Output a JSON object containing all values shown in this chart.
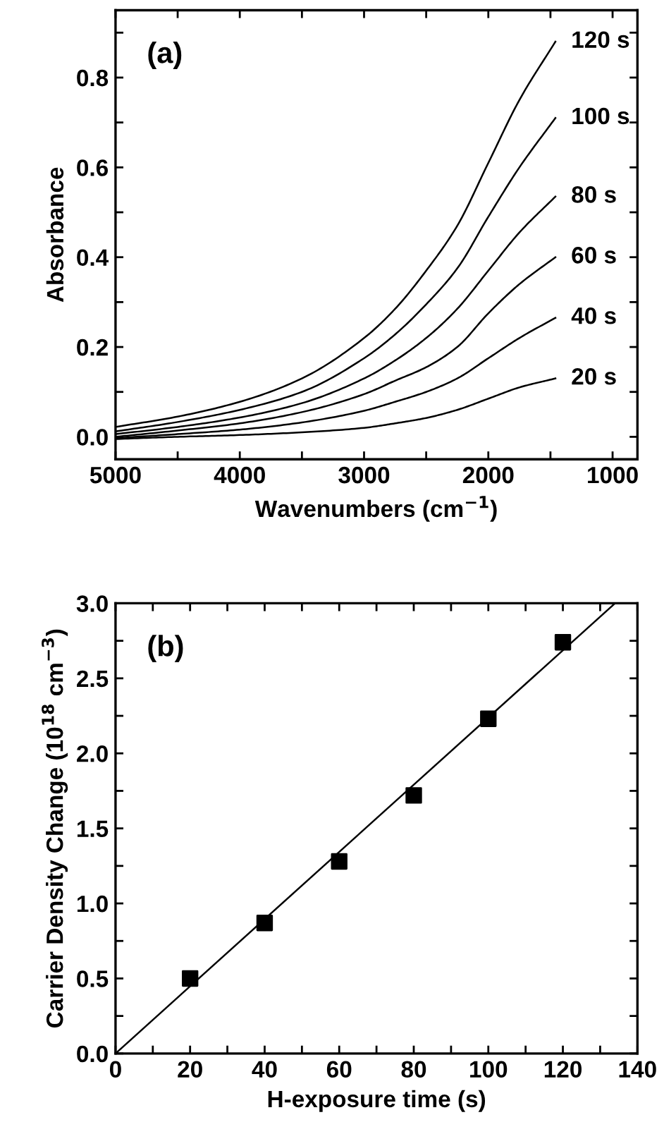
{
  "chart_data": [
    {
      "type": "line",
      "xlabel": "Wavenumbers (cm$^{−1}$)",
      "ylabel": "Absorbance",
      "annotations": [
        "(a)"
      ],
      "x": [
        5000,
        4500,
        4000,
        3500,
        3000,
        2750,
        2500,
        2250,
        2000,
        1750,
        1460
      ],
      "series": [
        {
          "name": "120 s",
          "color": "#000000",
          "values": [
            0.022,
            0.045,
            0.078,
            0.13,
            0.22,
            0.285,
            0.37,
            0.47,
            0.61,
            0.75,
            0.88
          ]
        },
        {
          "name": "100 s",
          "color": "#000000",
          "values": [
            0.012,
            0.033,
            0.06,
            0.1,
            0.175,
            0.228,
            0.295,
            0.375,
            0.49,
            0.6,
            0.71
          ]
        },
        {
          "name": "80 s",
          "color": "#000000",
          "values": [
            0.006,
            0.022,
            0.043,
            0.075,
            0.13,
            0.17,
            0.22,
            0.285,
            0.37,
            0.455,
            0.535
          ]
        },
        {
          "name": "60 s",
          "color": "#000000",
          "values": [
            0.0,
            0.014,
            0.03,
            0.055,
            0.095,
            0.125,
            0.155,
            0.2,
            0.275,
            0.34,
            0.4
          ]
        },
        {
          "name": "40 s",
          "color": "#000000",
          "values": [
            -0.003,
            0.006,
            0.016,
            0.032,
            0.058,
            0.078,
            0.1,
            0.13,
            0.175,
            0.22,
            0.265
          ]
        },
        {
          "name": "20 s",
          "color": "#000000",
          "values": [
            -0.005,
            0.0,
            0.004,
            0.01,
            0.02,
            0.03,
            0.042,
            0.06,
            0.085,
            0.11,
            0.13
          ]
        }
      ],
      "xlim": [
        5000,
        800
      ],
      "ylim": [
        -0.05,
        0.95
      ],
      "xticks": [
        5000,
        {
          "value": 4500,
          "label": null
        },
        4000,
        {
          "value": 3500,
          "label": null
        },
        3000,
        {
          "value": 2500,
          "label": null
        },
        2000,
        {
          "value": 1500,
          "label": null
        },
        1000
      ],
      "yticks": [
        "0.0",
        {
          "value": 0.1,
          "label": null
        },
        {
          "value": 0.2,
          "label": "0.2"
        },
        {
          "value": 0.3,
          "label": null
        },
        {
          "value": 0.4,
          "label": "0.4"
        },
        {
          "value": 0.5,
          "label": null
        },
        {
          "value": 0.6,
          "label": "0.6"
        },
        {
          "value": 0.7,
          "label": null
        },
        {
          "value": 0.8,
          "label": "0.8"
        },
        {
          "value": 0.9,
          "label": null
        }
      ],
      "grid": false,
      "legend": "right",
      "marker": "none",
      "line_style": "solid"
    },
    {
      "type": "scatter",
      "xlabel": "H-exposure time (s)",
      "ylabel": "Carrier Density Change (10$^{18}$ cm$^{−3}$)",
      "annotations": [
        "(b)"
      ],
      "series": [
        {
          "color": "#000000",
          "marker": "square",
          "x": [
            20,
            40,
            60,
            80,
            100,
            120
          ],
          "values": [
            0.5,
            0.87,
            1.28,
            1.72,
            2.23,
            2.74
          ]
        },
        {
          "type": "line",
          "color": "#000000",
          "marker": "none",
          "x": [
            0,
            134
          ],
          "values": [
            0.0,
            3.0
          ]
        }
      ],
      "xlim": [
        0,
        140
      ],
      "ylim": [
        0,
        3
      ],
      "xticks": [
        0,
        {
          "value": 10,
          "label": null
        },
        20,
        {
          "value": 30,
          "label": null
        },
        40,
        {
          "value": 50,
          "label": null
        },
        60,
        {
          "value": 70,
          "label": null
        },
        80,
        {
          "value": 90,
          "label": null
        },
        100,
        {
          "value": 110,
          "label": null
        },
        120,
        {
          "value": 130,
          "label": null
        },
        140
      ],
      "yticks": [
        {
          "value": 0,
          "label": "0.0"
        },
        {
          "value": 0.25,
          "label": null
        },
        0.5,
        {
          "value": 0.75,
          "label": null
        },
        {
          "value": 1,
          "label": "1.0"
        },
        {
          "value": 1.25,
          "label": null
        },
        1.5,
        {
          "value": 1.75,
          "label": null
        },
        {
          "value": 2,
          "label": "2.0"
        },
        {
          "value": 2.25,
          "label": null
        },
        2.5,
        {
          "value": 2.75,
          "label": null
        },
        {
          "value": 3,
          "label": "3.0"
        }
      ],
      "grid": false
    }
  ]
}
